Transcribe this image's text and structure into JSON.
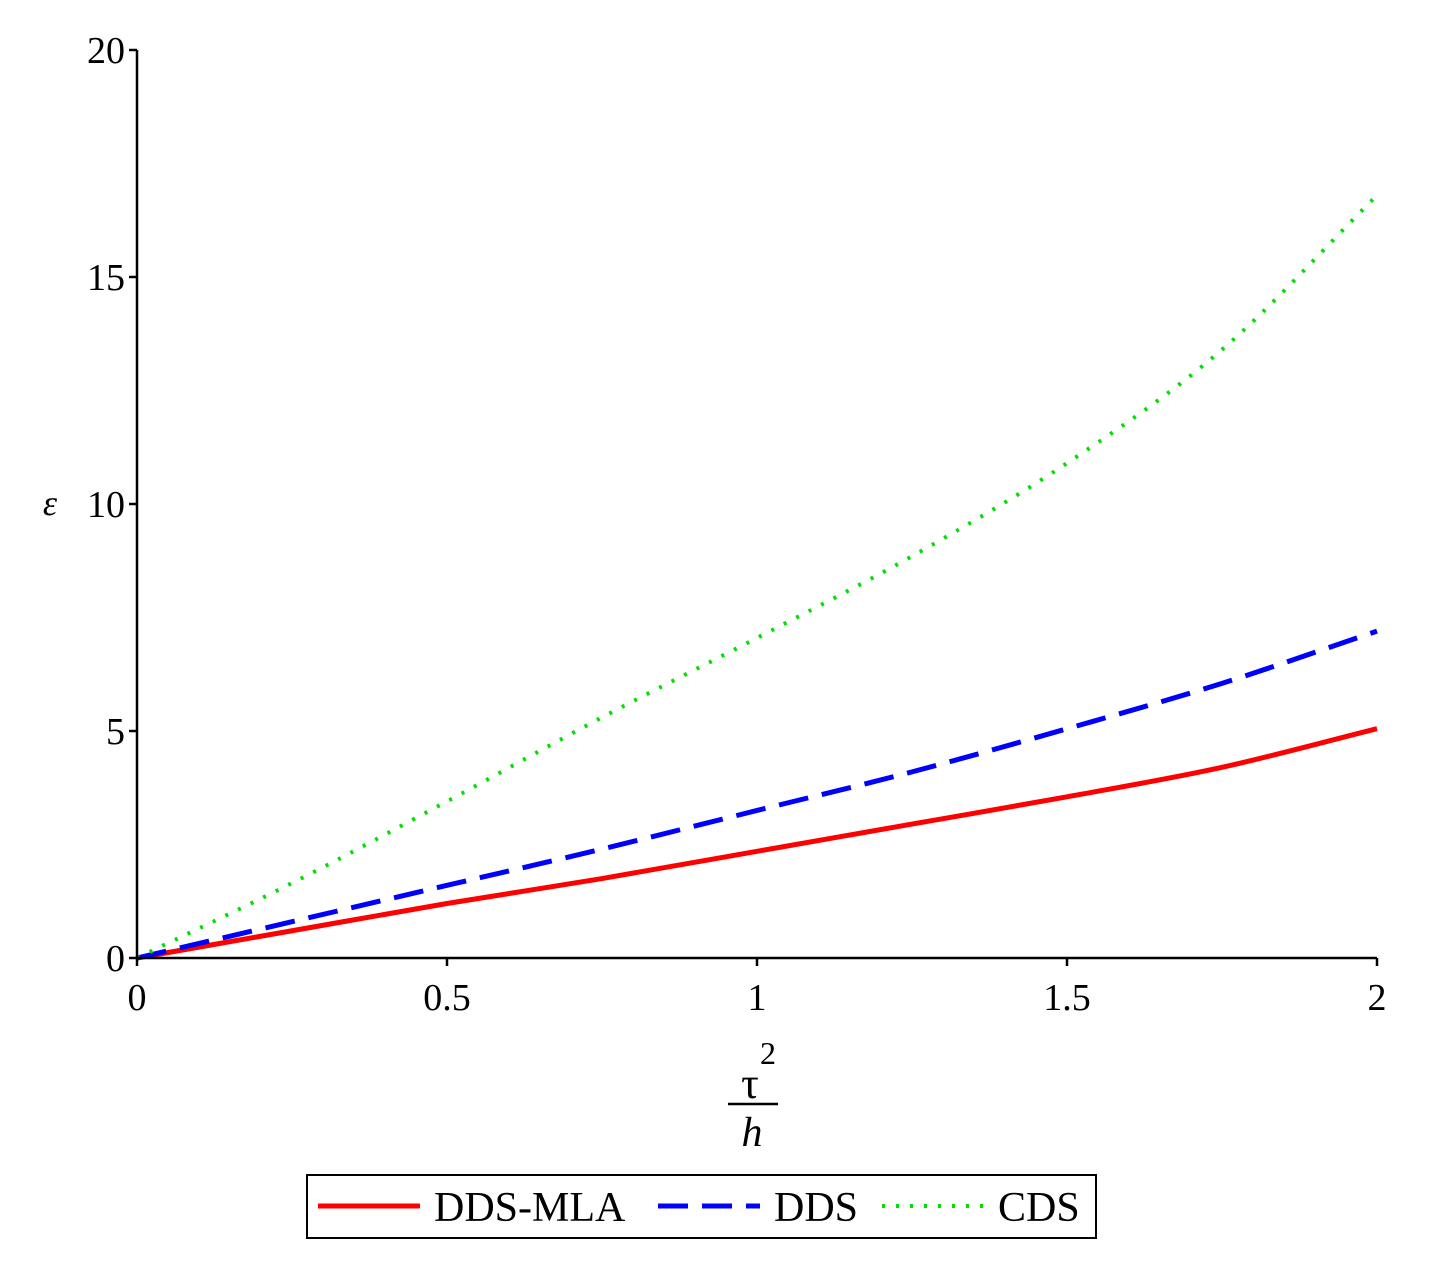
{
  "chart_data": {
    "type": "line",
    "title": "",
    "ylabel": "ε",
    "xlabel": {
      "numerator": "τ",
      "exponent": "2",
      "denominator": "h"
    },
    "xlim": [
      0,
      2
    ],
    "ylim": [
      0,
      20
    ],
    "xticks": [
      0,
      0.5,
      1,
      1.5,
      2
    ],
    "xtick_labels": [
      "0",
      "0.5",
      "1",
      "1.5",
      "2"
    ],
    "yticks": [
      0,
      5,
      10,
      15,
      20
    ],
    "ytick_labels": [
      "0",
      "5",
      "10",
      "15",
      "20"
    ],
    "grid": false,
    "legend_position": "bottom",
    "series": [
      {
        "name": "DDS-MLA",
        "color": "#ff0000",
        "style": "solid",
        "x": [
          0,
          0.25,
          0.5,
          0.75,
          1.0,
          1.25,
          1.5,
          1.75,
          2.0
        ],
        "y": [
          0,
          0.6,
          1.2,
          1.75,
          2.35,
          2.95,
          3.55,
          4.2,
          5.05
        ]
      },
      {
        "name": "DDS",
        "color": "#0000ff",
        "style": "dashed",
        "x": [
          0,
          0.25,
          0.5,
          0.75,
          1.0,
          1.25,
          1.5,
          1.75,
          2.0
        ],
        "y": [
          0,
          0.8,
          1.6,
          2.4,
          3.25,
          4.1,
          5.05,
          6.05,
          7.2
        ]
      },
      {
        "name": "CDS",
        "color": "#00e000",
        "style": "dotted",
        "x": [
          0,
          0.25,
          0.5,
          0.75,
          1.0,
          1.25,
          1.5,
          1.75,
          2.0
        ],
        "y": [
          0,
          1.65,
          3.45,
          5.3,
          7.05,
          8.85,
          10.9,
          13.4,
          16.8
        ]
      }
    ]
  }
}
